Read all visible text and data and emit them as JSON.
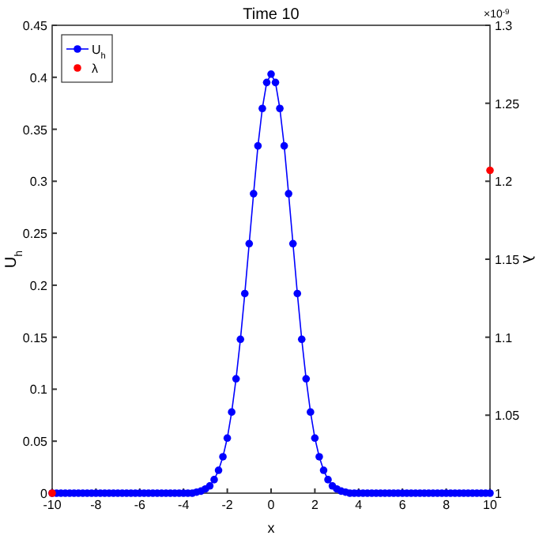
{
  "chart_data": {
    "type": "line",
    "title": "Time 10",
    "xlabel": "x",
    "ylabel": "U$_{h}$",
    "y2label": "λ",
    "annotations": [
      "×10$^{-9}$"
    ],
    "xlim": [
      -10,
      10
    ],
    "xticks": [
      -10,
      -8,
      -6,
      -4,
      -2,
      0,
      2,
      4,
      6,
      8,
      10
    ],
    "ylim": [
      0,
      0.45
    ],
    "yticks": [
      0,
      0.05,
      0.1,
      0.15,
      0.2,
      0.25,
      0.3,
      0.35,
      0.4,
      0.45
    ],
    "y2lim": [
      1,
      1.3
    ],
    "y2ticks": [
      1,
      1.05,
      1.1,
      1.15,
      1.2,
      1.25,
      1.3
    ],
    "legend": "top left",
    "marker": "circle",
    "grid": false,
    "series": [
      {
        "name": "U$_{h}$",
        "color": "#0000ff",
        "type": "line",
        "x": [
          -10,
          -9.8,
          -9.6,
          -9.4,
          -9.2,
          -9,
          -8.8,
          -8.6,
          -8.4,
          -8.2,
          -8,
          -7.8,
          -7.6,
          -7.4,
          -7.2,
          -7,
          -6.8,
          -6.6,
          -6.4,
          -6.2,
          -6,
          -5.8,
          -5.6,
          -5.4,
          -5.2,
          -5,
          -4.8,
          -4.6,
          -4.4,
          -4.2,
          -4,
          -3.8,
          -3.6,
          -3.4,
          -3.2,
          -3,
          -2.8,
          -2.6,
          -2.4,
          -2.2,
          -2,
          -1.8,
          -1.6,
          -1.4,
          -1.2,
          -1,
          -0.8,
          -0.6,
          -0.4,
          -0.2,
          0,
          0.2,
          0.4,
          0.6,
          0.8,
          1,
          1.2,
          1.4,
          1.6,
          1.8,
          2,
          2.2,
          2.4,
          2.6,
          2.8,
          3,
          3.2,
          3.4,
          3.6,
          3.8,
          4,
          4.2,
          4.4,
          4.6,
          4.8,
          5,
          5.2,
          5.4,
          5.6,
          5.8,
          6,
          6.2,
          6.4,
          6.6,
          6.8,
          7,
          7.2,
          7.4,
          7.6,
          7.8,
          8,
          8.2,
          8.4,
          8.6,
          8.8,
          9,
          9.2,
          9.4,
          9.6,
          9.8,
          10
        ],
        "values": [
          0,
          0,
          0,
          0,
          0,
          0,
          0,
          0,
          0,
          0,
          0,
          0,
          0,
          0,
          0,
          0,
          0,
          0,
          0,
          0,
          0,
          0,
          0,
          0,
          0,
          0,
          0,
          0,
          0,
          0,
          0,
          0,
          0,
          0.001,
          0.002,
          0.004,
          0.007,
          0.013,
          0.022,
          0.035,
          0.053,
          0.078,
          0.11,
          0.148,
          0.192,
          0.24,
          0.288,
          0.334,
          0.37,
          0.395,
          0.403,
          0.395,
          0.37,
          0.334,
          0.288,
          0.24,
          0.192,
          0.148,
          0.11,
          0.078,
          0.053,
          0.035,
          0.022,
          0.013,
          0.007,
          0.004,
          0.002,
          0.001,
          0,
          0,
          0,
          0,
          0,
          0,
          0,
          0,
          0,
          0,
          0,
          0,
          0,
          0,
          0,
          0,
          0,
          0,
          0,
          0,
          0,
          0,
          0,
          0,
          0,
          0,
          0,
          0,
          0,
          0,
          0,
          0,
          0
        ]
      },
      {
        "name": "λ",
        "color": "#ff0000",
        "type": "scatter",
        "axis": "y2",
        "x": [
          -10,
          10
        ],
        "values": [
          1,
          1.207
        ]
      }
    ]
  }
}
